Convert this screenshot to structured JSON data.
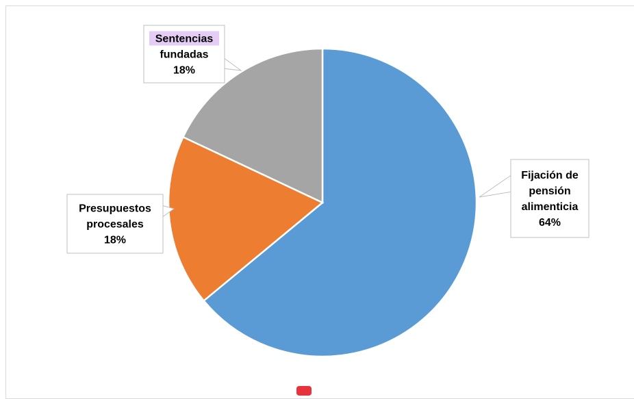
{
  "chart_data": {
    "type": "pie",
    "slices": [
      {
        "label_lines": [
          "Fijación de",
          "pensión",
          "alimenticia"
        ],
        "percent_label": "64%",
        "value": 64,
        "color": "#5b9bd5"
      },
      {
        "label_lines": [
          "Presupuestos",
          "procesales"
        ],
        "percent_label": "18%",
        "value": 18,
        "color": "#ed7d31"
      },
      {
        "label_lines": [
          "Sentencias",
          "fundadas"
        ],
        "percent_label": "18%",
        "value": 18,
        "color": "#a5a5a5"
      }
    ],
    "start_angle": "12 o'clock",
    "direction": "clockwise",
    "title": "",
    "legend": "none",
    "highlight_color": "#e4ccf5"
  }
}
